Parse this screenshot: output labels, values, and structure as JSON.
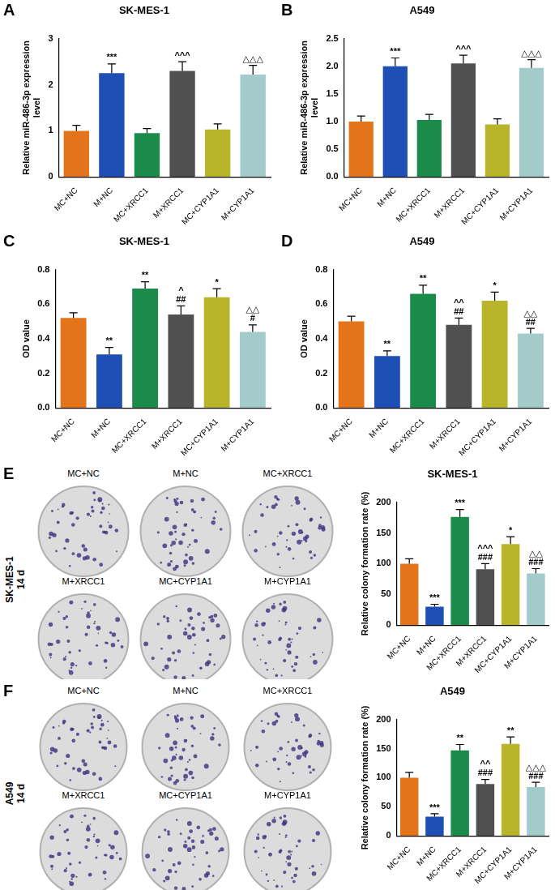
{
  "chart_data": [
    {
      "type": "bar",
      "panel": "A",
      "title": "SK-MES-1",
      "y_label": [
        "Relative miR-486-3p expression",
        "level"
      ],
      "categories": [
        "MC+NC",
        "M+NC",
        "MC+XRCC1",
        "M+XRCC1",
        "MC+CYP1A1",
        "M+CYP1A1"
      ],
      "values": [
        1.0,
        2.25,
        0.95,
        2.3,
        1.03,
        2.22
      ],
      "errors": [
        0.12,
        0.2,
        0.1,
        0.2,
        0.12,
        0.2
      ],
      "significance": [
        null,
        [
          "***"
        ],
        null,
        [
          "^^^"
        ],
        null,
        [
          "△△△"
        ]
      ],
      "colors": [
        "#e3741a",
        "#1d4fb5",
        "#1b8b4b",
        "#505050",
        "#b8b52a",
        "#a3cbc9"
      ],
      "ylim": [
        0,
        3
      ],
      "yticks": [
        0,
        1,
        2,
        3
      ],
      "grid": false
    },
    {
      "type": "bar",
      "panel": "B",
      "title": "A549",
      "y_label": [
        "Relative miR-486-3p expression",
        "level"
      ],
      "categories": [
        "MC+NC",
        "M+NC",
        "MC+XRCC1",
        "M+XRCC1",
        "MC+CYP1A1",
        "M+CYP1A1"
      ],
      "values": [
        1.0,
        2.0,
        1.03,
        2.05,
        0.95,
        1.97
      ],
      "errors": [
        0.1,
        0.15,
        0.1,
        0.15,
        0.1,
        0.15
      ],
      "significance": [
        null,
        [
          "***"
        ],
        null,
        [
          "^^^"
        ],
        null,
        [
          "△△△"
        ]
      ],
      "colors": [
        "#e3741a",
        "#1d4fb5",
        "#1b8b4b",
        "#505050",
        "#b8b52a",
        "#a3cbc9"
      ],
      "ylim": [
        0,
        2.5
      ],
      "yticks": [
        {
          "value": 0,
          "label": "0.0"
        },
        0.5,
        {
          "value": 1,
          "label": "1.0"
        },
        1.5,
        {
          "value": 2,
          "label": "2.0"
        },
        2.5
      ],
      "grid": false
    },
    {
      "type": "bar",
      "panel": "C",
      "title": "SK-MES-1",
      "y_label": "OD value",
      "categories": [
        "MC+NC",
        "M+NC",
        "MC+XRCC1",
        "M+XRCC1",
        "MC+CYP1A1",
        "M+CYP1A1"
      ],
      "values": [
        0.52,
        0.31,
        0.69,
        0.54,
        0.64,
        0.44
      ],
      "errors": [
        0.03,
        0.04,
        0.04,
        0.05,
        0.05,
        0.04
      ],
      "significance": [
        null,
        [
          "**"
        ],
        [
          "**"
        ],
        [
          "^",
          "##"
        ],
        [
          "*"
        ],
        [
          "△△",
          "#"
        ]
      ],
      "colors": [
        "#e3741a",
        "#1d4fb5",
        "#1b8b4b",
        "#505050",
        "#b8b52a",
        "#a3cbc9"
      ],
      "ylim": [
        0,
        0.8
      ],
      "yticks": [
        {
          "value": 0,
          "label": "0.0"
        },
        0.2,
        0.4,
        0.6,
        0.8
      ],
      "grid": false
    },
    {
      "type": "bar",
      "panel": "D",
      "title": "A549",
      "y_label": "OD value",
      "categories": [
        "MC+NC",
        "M+NC",
        "MC+XRCC1",
        "M+XRCC1",
        "MC+CYP1A1",
        "M+CYP1A1"
      ],
      "values": [
        0.5,
        0.3,
        0.66,
        0.48,
        0.62,
        0.43
      ],
      "errors": [
        0.03,
        0.03,
        0.05,
        0.04,
        0.05,
        0.03
      ],
      "significance": [
        null,
        [
          "**"
        ],
        [
          "**"
        ],
        [
          "^^",
          "##"
        ],
        [
          "*"
        ],
        [
          "△△",
          "##"
        ]
      ],
      "colors": [
        "#e3741a",
        "#1d4fb5",
        "#1b8b4b",
        "#505050",
        "#b8b52a",
        "#a3cbc9"
      ],
      "ylim": [
        0,
        0.8
      ],
      "yticks": [
        {
          "value": 0,
          "label": "0.0"
        },
        0.2,
        0.4,
        0.6,
        0.8
      ],
      "grid": false
    },
    {
      "type": "bar",
      "panel": "E",
      "title": "SK-MES-1",
      "y_label": "Relative colony formation rate (%)",
      "plate_side_label": [
        "SK-MES-1",
        "14 d"
      ],
      "categories": [
        "MC+NC",
        "M+NC",
        "MC+XRCC1",
        "M+XRCC1",
        "MC+CYP1A1",
        "M+CYP1A1"
      ],
      "values": [
        100,
        30,
        176,
        91,
        132,
        84
      ],
      "errors": [
        8,
        4,
        12,
        9,
        12,
        8
      ],
      "significance": [
        null,
        [
          "***"
        ],
        [
          "***"
        ],
        [
          "^^^",
          "###"
        ],
        [
          "*"
        ],
        [
          "△△",
          "###"
        ]
      ],
      "colors": [
        "#e3741a",
        "#1d4fb5",
        "#1b8b4b",
        "#505050",
        "#b8b52a",
        "#a3cbc9"
      ],
      "ylim": [
        0,
        200
      ],
      "yticks": [
        0,
        50,
        100,
        150,
        200
      ],
      "grid": false
    },
    {
      "type": "bar",
      "panel": "F",
      "title": "A549",
      "y_label": "Relative colony formation rate (%)",
      "plate_side_label": [
        "A549",
        "14 d"
      ],
      "categories": [
        "MC+NC",
        "M+NC",
        "MC+XRCC1",
        "M+XRCC1",
        "MC+CYP1A1",
        "M+CYP1A1"
      ],
      "values": [
        100,
        33,
        147,
        89,
        158,
        84
      ],
      "errors": [
        9,
        5,
        10,
        8,
        12,
        8
      ],
      "significance": [
        null,
        [
          "***"
        ],
        [
          "**"
        ],
        [
          "^^",
          "###"
        ],
        [
          "**"
        ],
        [
          "△△△",
          "###"
        ]
      ],
      "colors": [
        "#e3741a",
        "#1d4fb5",
        "#1b8b4b",
        "#505050",
        "#b8b52a",
        "#a3cbc9"
      ],
      "ylim": [
        0,
        200
      ],
      "yticks": [
        0,
        50,
        100,
        150,
        200
      ],
      "grid": false
    }
  ]
}
